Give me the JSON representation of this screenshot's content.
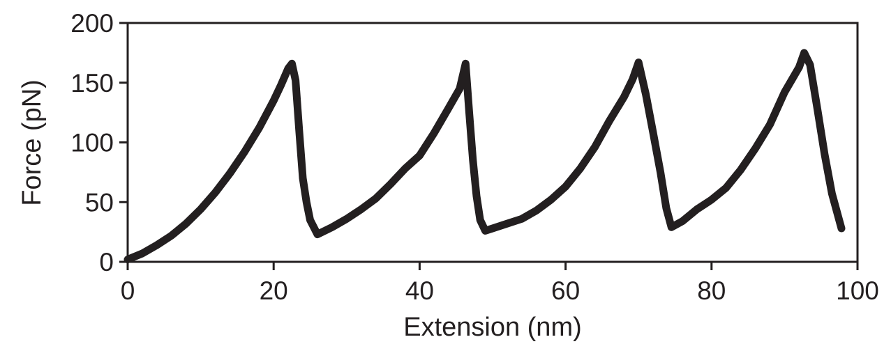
{
  "chart_data": {
    "type": "line",
    "title": "",
    "xlabel": "Extension (nm)",
    "ylabel": "Force (pN)",
    "xlim": [
      0,
      100
    ],
    "ylim": [
      0,
      200
    ],
    "xticks": [
      0,
      20,
      40,
      60,
      80,
      100
    ],
    "yticks": [
      0,
      50,
      100,
      150,
      200
    ],
    "grid": false,
    "line_color": "#231f20",
    "series": [
      {
        "x": [
          0,
          2,
          4,
          6,
          8,
          10,
          12,
          14,
          16,
          18,
          20,
          21,
          22,
          22.5,
          23,
          23.5,
          24,
          24.5,
          25,
          26,
          28,
          30,
          32,
          34,
          36,
          38,
          40,
          42,
          44,
          45.5,
          46.3,
          46.8,
          47.3,
          47.8,
          48.3,
          49,
          50,
          52,
          54,
          56,
          58,
          60,
          62,
          64,
          66,
          68,
          69.2,
          70,
          71,
          72,
          73,
          73.8,
          74.5,
          76,
          78,
          80,
          82,
          84,
          86,
          88,
          90,
          92,
          92.7,
          93.5,
          94.5,
          95.5,
          96.5,
          97.8
        ],
        "y": [
          2,
          7,
          14,
          22,
          32,
          44,
          58,
          74,
          92,
          112,
          135,
          148,
          162,
          166,
          152,
          110,
          70,
          50,
          35,
          23,
          29,
          36,
          44,
          53,
          65,
          78,
          89,
          108,
          129,
          145,
          166,
          125,
          85,
          55,
          35,
          26,
          28,
          32,
          36,
          43,
          52,
          63,
          78,
          96,
          118,
          138,
          153,
          167,
          140,
          108,
          75,
          45,
          29,
          34,
          44,
          52,
          62,
          77,
          95,
          115,
          142,
          163,
          175,
          165,
          128,
          90,
          57,
          28
        ]
      }
    ]
  }
}
